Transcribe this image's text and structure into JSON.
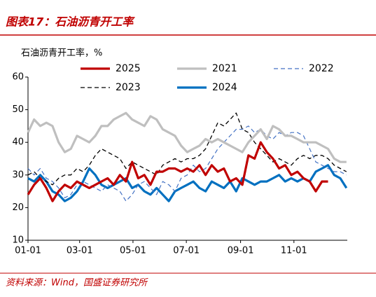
{
  "chart_data": {
    "type": "line",
    "title": "图表17：石油沥青开工率",
    "y_label": "石油沥青开工率，%",
    "source": "资料来源：Wind，国盛证券研究所",
    "x": [
      0,
      7,
      14,
      21,
      28,
      35,
      42,
      49,
      56,
      63,
      70,
      77,
      84,
      91,
      98,
      105,
      112,
      119,
      126,
      133,
      140,
      147,
      154,
      161,
      168,
      175,
      182,
      189,
      196,
      203,
      210,
      217,
      224,
      231,
      238,
      245,
      252,
      259,
      266,
      273,
      280,
      287,
      294,
      301,
      308,
      315,
      322,
      329,
      336,
      343,
      350,
      357,
      364
    ],
    "xlim": [
      0,
      365
    ],
    "xticks": [
      {
        "value": 0,
        "label": "01-01"
      },
      {
        "value": 59,
        "label": "03-01"
      },
      {
        "value": 120,
        "label": "05-01"
      },
      {
        "value": 181,
        "label": "07-01"
      },
      {
        "value": 243,
        "label": "09-01"
      },
      {
        "value": 304,
        "label": "11-01"
      }
    ],
    "ylim": [
      10,
      60
    ],
    "yticks": [
      10,
      20,
      30,
      40,
      50,
      60
    ],
    "grid": false,
    "series": [
      {
        "name": "2025",
        "color": "#c00000",
        "dashed": false,
        "line_width": 3.2,
        "values": [
          24,
          27,
          29,
          26,
          22,
          25,
          27,
          26,
          28,
          27,
          26,
          27,
          28,
          29,
          27,
          30,
          28,
          34,
          29,
          30,
          27,
          31,
          31,
          32,
          32,
          31,
          32,
          31,
          33,
          30,
          33,
          31,
          32,
          28,
          29,
          27,
          36,
          35,
          40,
          37,
          35,
          32,
          33,
          30,
          31,
          29,
          28,
          25,
          28,
          28,
          null,
          null,
          null
        ]
      },
      {
        "name": "2021",
        "color": "#bfbfbf",
        "dashed": false,
        "line_width": 3.2,
        "values": [
          43,
          47,
          45,
          46,
          45,
          40,
          37,
          38,
          42,
          41,
          40,
          42,
          45,
          45,
          47,
          48,
          49,
          47,
          46,
          45,
          48,
          47,
          44,
          43,
          42,
          39,
          37,
          38,
          39,
          41,
          40,
          41,
          40,
          39,
          38,
          37,
          40,
          42,
          44,
          41,
          45,
          44,
          42,
          42,
          41,
          40,
          40,
          40,
          39,
          38,
          35,
          34,
          34
        ]
      },
      {
        "name": "2022",
        "color": "#4472c4",
        "dashed": true,
        "line_width": 1.2,
        "values": [
          32,
          30,
          32,
          29,
          28,
          26,
          23,
          24,
          27,
          28,
          27,
          26,
          25,
          27,
          26,
          25,
          22,
          24,
          27,
          28,
          26,
          24,
          28,
          27,
          25,
          29,
          30,
          33,
          31,
          32,
          35,
          38,
          40,
          42,
          44,
          44,
          45,
          43,
          44,
          42,
          41,
          43,
          42,
          43,
          43,
          42,
          38,
          34,
          33,
          32,
          31,
          31,
          30
        ]
      },
      {
        "name": "2023",
        "color": "#000000",
        "dashed": true,
        "line_width": 1.3,
        "values": [
          30,
          31,
          29,
          28,
          27,
          29,
          30,
          30,
          32,
          31,
          33,
          36,
          38,
          37,
          36,
          35,
          32,
          34,
          33,
          32,
          31,
          30,
          33,
          34,
          35,
          34,
          35,
          35,
          36,
          38,
          42,
          46,
          45,
          47,
          49,
          44,
          43,
          40,
          38,
          36,
          34,
          35,
          34,
          33,
          35,
          36,
          35,
          36,
          36,
          35,
          33,
          32,
          31
        ]
      },
      {
        "name": "2024",
        "color": "#0070c0",
        "dashed": false,
        "line_width": 3.2,
        "values": [
          29,
          28,
          30,
          28,
          25,
          24,
          22,
          23,
          25,
          28,
          32,
          30,
          27,
          26,
          27,
          28,
          29,
          26,
          27,
          25,
          24,
          26,
          24,
          22,
          25,
          26,
          27,
          28,
          26,
          25,
          28,
          27,
          26,
          28,
          25,
          29,
          28,
          27,
          28,
          28,
          29,
          30,
          28,
          29,
          28,
          29,
          28,
          31,
          32,
          33,
          30,
          29,
          26
        ]
      }
    ]
  }
}
